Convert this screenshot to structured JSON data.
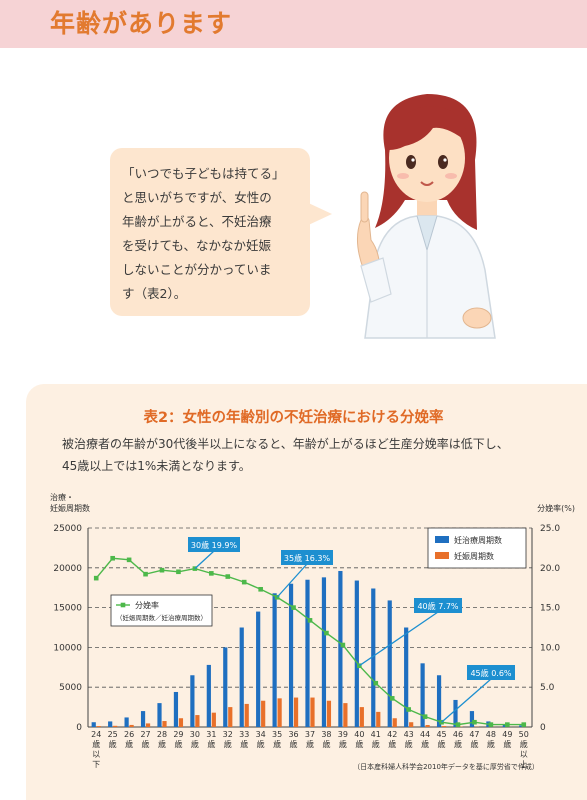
{
  "header": {
    "title": "年齢があります"
  },
  "bubble": {
    "lines": [
      "「いつでも子どもは持てる」",
      "と思いがちですが、女性の",
      "年齢が上がると、不妊治療",
      "を受けても、なかなか妊娠",
      "しないことが分かっていま",
      "す（表2）。"
    ]
  },
  "panel": {
    "title": "表2：女性の年齢別の不妊治療における分娩率",
    "description": [
      "被治療者の年齢が30代後半以上になると、年齢が上がるほど生産分娩率は低下し、",
      "45歳以上では1%未満となります。"
    ]
  },
  "colors": {
    "bar_treatment": "#1f6fc0",
    "bar_pregnancy": "#e8702a",
    "line_rate": "#4db84a",
    "callout": "#1d8fd0",
    "title_orange": "#e06a26",
    "header_pink": "#f6d3d5",
    "panel_bg": "#fdf0e2"
  },
  "chart_data": {
    "type": "bar",
    "left_axis_title": [
      "治療・",
      "妊娠周期数"
    ],
    "right_axis_title": "分娩率(%)",
    "left_ticks": [
      "0",
      "5000",
      "10000",
      "15000",
      "20000",
      "25000"
    ],
    "right_ticks": [
      "0",
      "5.0",
      "10.0",
      "15.0",
      "20.0",
      "25.0"
    ],
    "ylim_left": [
      0,
      25000
    ],
    "ylim_right": [
      0,
      25
    ],
    "categories": [
      "24歳以下",
      "25歳",
      "26歳",
      "27歳",
      "28歳",
      "29歳",
      "30歳",
      "31歳",
      "32歳",
      "33歳",
      "34歳",
      "35歳",
      "36歳",
      "37歳",
      "38歳",
      "39歳",
      "40歳",
      "41歳",
      "42歳",
      "43歳",
      "44歳",
      "45歳",
      "46歳",
      "47歳",
      "48歳",
      "49歳",
      "50歳以上"
    ],
    "category_labels": [
      [
        "24",
        "歳",
        "以",
        "下"
      ],
      [
        "25",
        "歳"
      ],
      [
        "26",
        "歳"
      ],
      [
        "27",
        "歳"
      ],
      [
        "28",
        "歳"
      ],
      [
        "29",
        "歳"
      ],
      [
        "30",
        "歳"
      ],
      [
        "31",
        "歳"
      ],
      [
        "32",
        "歳"
      ],
      [
        "33",
        "歳"
      ],
      [
        "34",
        "歳"
      ],
      [
        "35",
        "歳"
      ],
      [
        "36",
        "歳"
      ],
      [
        "37",
        "歳"
      ],
      [
        "38",
        "歳"
      ],
      [
        "39",
        "歳"
      ],
      [
        "40",
        "歳"
      ],
      [
        "41",
        "歳"
      ],
      [
        "42",
        "歳"
      ],
      [
        "43",
        "歳"
      ],
      [
        "44",
        "歳"
      ],
      [
        "45",
        "歳"
      ],
      [
        "46",
        "歳"
      ],
      [
        "47",
        "歳"
      ],
      [
        "48",
        "歳"
      ],
      [
        "49",
        "歳"
      ],
      [
        "50",
        "歳",
        "以",
        "上"
      ]
    ],
    "series": [
      {
        "name": "妊治療周期数",
        "axis": "left",
        "kind": "bar",
        "values": [
          600,
          700,
          1200,
          2000,
          3000,
          4400,
          6500,
          7800,
          10000,
          12500,
          14500,
          16800,
          18000,
          18500,
          18800,
          19600,
          18400,
          17400,
          15900,
          12500,
          8000,
          6500,
          3400,
          2000,
          700,
          300,
          200
        ]
      },
      {
        "name": "妊娠周期数",
        "axis": "left",
        "kind": "bar",
        "values": [
          120,
          150,
          260,
          450,
          750,
          1100,
          1500,
          1800,
          2500,
          2900,
          3300,
          3600,
          3700,
          3700,
          3300,
          3000,
          2500,
          1900,
          1100,
          600,
          250,
          120,
          50,
          30,
          10,
          5,
          3
        ]
      },
      {
        "name": "分娩率",
        "sub": "（妊娠周期数／妊治療周期数）",
        "axis": "right",
        "kind": "line",
        "values": [
          18.7,
          21.2,
          21.0,
          19.2,
          19.7,
          19.5,
          19.9,
          19.3,
          18.9,
          18.2,
          17.3,
          16.3,
          15.0,
          13.4,
          11.8,
          10.3,
          7.7,
          5.5,
          3.6,
          2.2,
          1.3,
          0.6,
          0.3,
          0.6,
          0.3,
          0.3,
          0.3
        ]
      }
    ],
    "callouts": [
      {
        "label": "30歳 19.9%",
        "index": 6
      },
      {
        "label": "35歳 16.3%",
        "index": 11
      },
      {
        "label": "40歳 7.7%",
        "index": 16
      },
      {
        "label": "45歳 0.6%",
        "index": 21
      }
    ],
    "source": "（日本産科婦人科学会2010年データを基に厚労省で作成）"
  }
}
